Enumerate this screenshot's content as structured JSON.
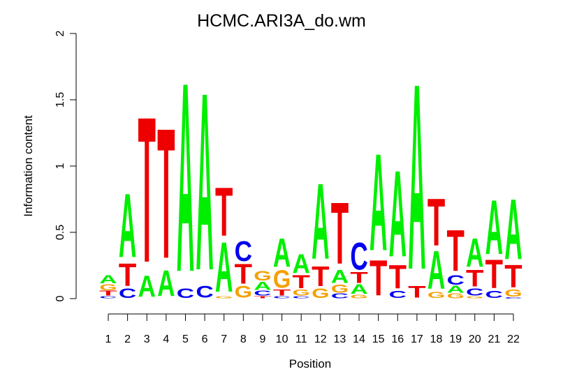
{
  "chart_data": {
    "type": "sequence-logo",
    "title": "HCMC.ARI3A_do.wm",
    "xlabel": "Position",
    "ylabel": "Information content",
    "ylim": [
      0,
      2
    ],
    "yticks": [
      "0",
      "0.5",
      "1",
      "1.5",
      "2"
    ],
    "positions": [
      "1",
      "2",
      "3",
      "4",
      "5",
      "6",
      "7",
      "8",
      "9",
      "10",
      "11",
      "12",
      "13",
      "14",
      "15",
      "16",
      "17",
      "18",
      "19",
      "20",
      "21",
      "22"
    ],
    "colors": {
      "A": "#00ee00",
      "C": "#0000ee",
      "G": "#f5a000",
      "T": "#ee0000"
    },
    "stacks": [
      [
        {
          "base": "C",
          "height": 0.02
        },
        {
          "base": "T",
          "height": 0.04
        },
        {
          "base": "G",
          "height": 0.05
        },
        {
          "base": "A",
          "height": 0.07
        }
      ],
      [
        {
          "base": "C",
          "height": 0.08
        },
        {
          "base": "T",
          "height": 0.19
        },
        {
          "base": "A",
          "height": 0.54
        }
      ],
      [
        {
          "base": "A",
          "height": 0.18
        },
        {
          "base": "T",
          "height": 1.23
        }
      ],
      [
        {
          "base": "A",
          "height": 0.22
        },
        {
          "base": "T",
          "height": 1.1
        }
      ],
      [
        {
          "base": "C",
          "height": 0.08
        },
        {
          "base": "A",
          "height": 1.6
        }
      ],
      [
        {
          "base": "C",
          "height": 0.1
        },
        {
          "base": "A",
          "height": 1.5
        }
      ],
      [
        {
          "base": "G",
          "height": 0.02
        },
        {
          "base": "A",
          "height": 0.42
        },
        {
          "base": "T",
          "height": 0.41
        }
      ],
      [
        {
          "base": "G",
          "height": 0.1
        },
        {
          "base": "T",
          "height": 0.17
        },
        {
          "base": "C",
          "height": 0.17
        }
      ],
      [
        {
          "base": "T",
          "height": 0.02
        },
        {
          "base": "C",
          "height": 0.04
        },
        {
          "base": "A",
          "height": 0.07
        },
        {
          "base": "G",
          "height": 0.08
        }
      ],
      [
        {
          "base": "C",
          "height": 0.02
        },
        {
          "base": "T",
          "height": 0.05
        },
        {
          "base": "G",
          "height": 0.15
        },
        {
          "base": "A",
          "height": 0.24
        }
      ],
      [
        {
          "base": "C",
          "height": 0.02
        },
        {
          "base": "G",
          "height": 0.05
        },
        {
          "base": "T",
          "height": 0.11
        },
        {
          "base": "A",
          "height": 0.16
        }
      ],
      [
        {
          "base": "G",
          "height": 0.08
        },
        {
          "base": "T",
          "height": 0.17
        },
        {
          "base": "A",
          "height": 0.64
        }
      ],
      [
        {
          "base": "C",
          "height": 0.04
        },
        {
          "base": "G",
          "height": 0.07
        },
        {
          "base": "A",
          "height": 0.11
        },
        {
          "base": "T",
          "height": 0.52
        }
      ],
      [
        {
          "base": "G",
          "height": 0.03
        },
        {
          "base": "A",
          "height": 0.08
        },
        {
          "base": "T",
          "height": 0.09
        },
        {
          "base": "C",
          "height": 0.23
        }
      ],
      [
        {
          "base": "T",
          "height": 0.3
        },
        {
          "base": "A",
          "height": 0.82
        }
      ],
      [
        {
          "base": "C",
          "height": 0.06
        },
        {
          "base": "T",
          "height": 0.2
        },
        {
          "base": "A",
          "height": 0.73
        }
      ],
      [
        {
          "base": "T",
          "height": 0.1
        },
        {
          "base": "A",
          "height": 1.57
        }
      ],
      [
        {
          "base": "G",
          "height": 0.05
        },
        {
          "base": "A",
          "height": 0.32
        },
        {
          "base": "T",
          "height": 0.4
        }
      ],
      [
        {
          "base": "G",
          "height": 0.04
        },
        {
          "base": "A",
          "height": 0.06
        },
        {
          "base": "C",
          "height": 0.08
        },
        {
          "base": "T",
          "height": 0.35
        }
      ],
      [
        {
          "base": "G",
          "height": 0.02
        },
        {
          "base": "C",
          "height": 0.06
        },
        {
          "base": "T",
          "height": 0.14
        },
        {
          "base": "A",
          "height": 0.24
        }
      ],
      [
        {
          "base": "C",
          "height": 0.06
        },
        {
          "base": "T",
          "height": 0.24
        },
        {
          "base": "A",
          "height": 0.46
        }
      ],
      [
        {
          "base": "C",
          "height": 0.01
        },
        {
          "base": "G",
          "height": 0.06
        },
        {
          "base": "T",
          "height": 0.19
        },
        {
          "base": "A",
          "height": 0.51
        }
      ]
    ]
  }
}
